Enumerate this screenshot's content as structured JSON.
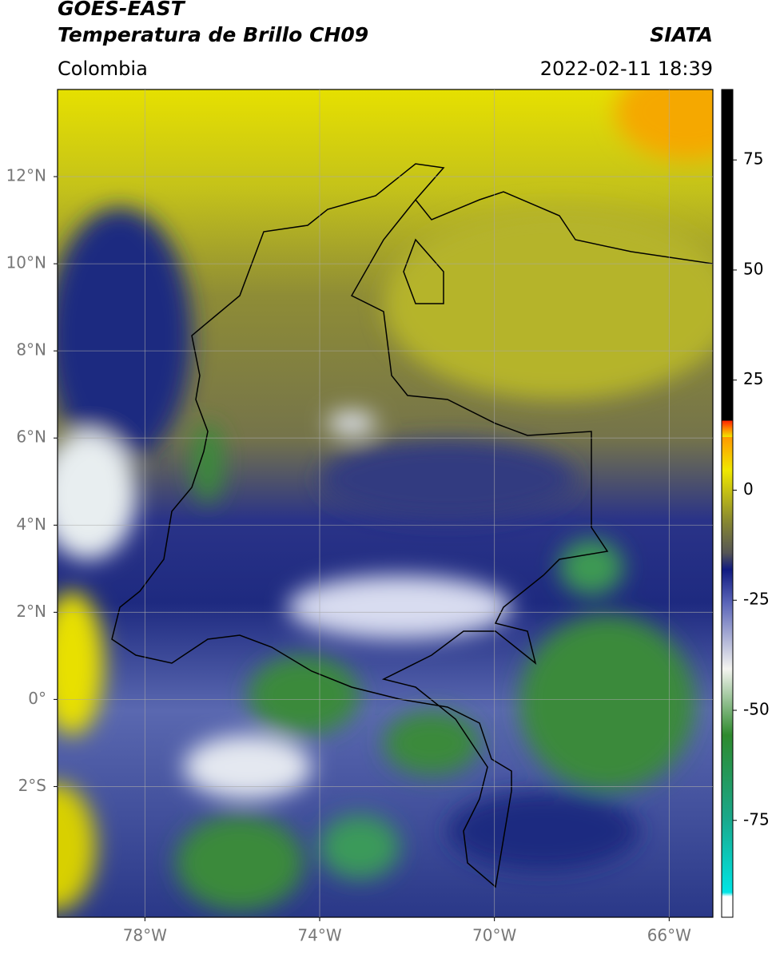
{
  "header": {
    "title": "GOES-EAST",
    "subtitle": "Temperatura de Brillo CH09",
    "source": "SIATA",
    "region": "Colombia",
    "datetime": "2022-02-11 18:39"
  },
  "map": {
    "xlim": [
      -80,
      -65
    ],
    "ylim": [
      -5,
      14
    ],
    "grid": true,
    "xticks": [
      {
        "value": -78,
        "label": "78°W"
      },
      {
        "value": -74,
        "label": "74°W"
      },
      {
        "value": -70,
        "label": "70°W"
      },
      {
        "value": -66,
        "label": "66°W"
      }
    ],
    "yticks": [
      {
        "value": 12,
        "label": "12°N"
      },
      {
        "value": 10,
        "label": "10°N"
      },
      {
        "value": 8,
        "label": "8°N"
      },
      {
        "value": 6,
        "label": "6°N"
      },
      {
        "value": 4,
        "label": "4°N"
      },
      {
        "value": 2,
        "label": "2°N"
      },
      {
        "value": 0,
        "label": "0°"
      },
      {
        "value": -2,
        "label": "2°S"
      }
    ]
  },
  "colorbar": {
    "ylim": [
      -97,
      91
    ],
    "yticks": [
      75,
      50,
      25,
      0,
      -25,
      -50,
      -75
    ]
  }
}
